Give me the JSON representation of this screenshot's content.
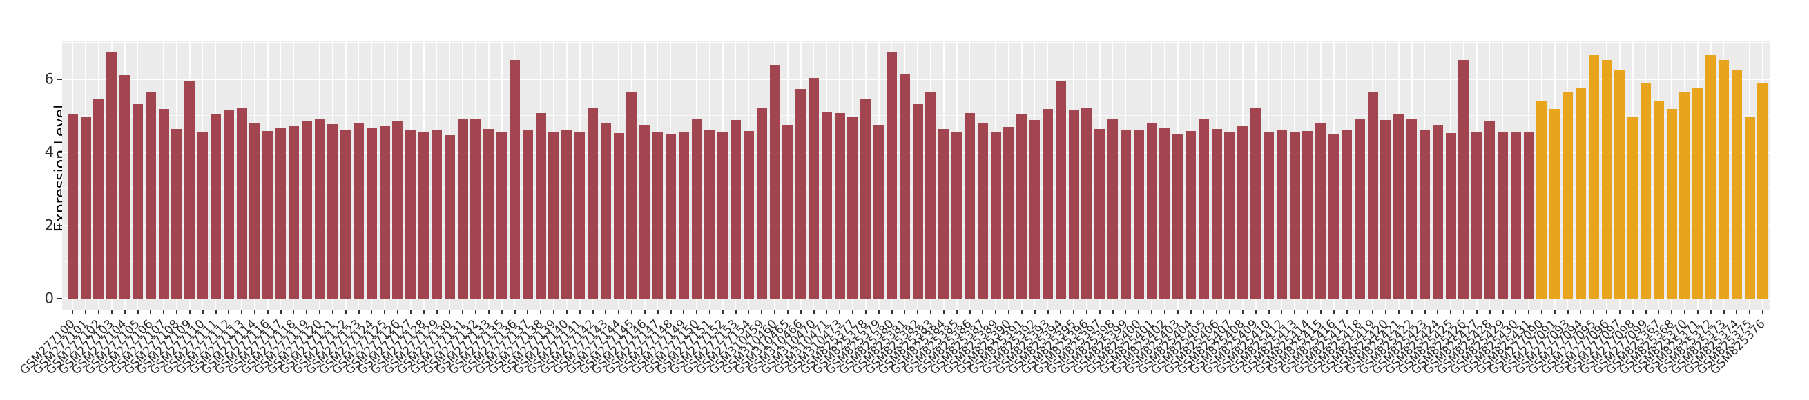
{
  "layout_colors": {
    "page_background": "#FFFFFF",
    "panel_background": "#EBEBEB",
    "grid_color": "#FFFFFF",
    "axis_text_color": "#2B2B2B",
    "tick_color": "#333333"
  },
  "chart_data": {
    "type": "bar",
    "title": "",
    "xlabel": "",
    "ylabel": "Expression Level",
    "ylim": [
      0,
      7.06
    ],
    "yticks": [
      0,
      2,
      4,
      6
    ],
    "grid": "on",
    "legend": "none",
    "groups": [
      {
        "name": "group-dark-red",
        "color": "#A34550"
      },
      {
        "name": "group-orange",
        "color": "#E8A41D"
      }
    ],
    "categories": [
      "GSM277100",
      "GSM277101",
      "GSM277102",
      "GSM277103",
      "GSM277104",
      "GSM277105",
      "GSM277106",
      "GSM277107",
      "GSM277108",
      "GSM277109",
      "GSM277110",
      "GSM277111",
      "GSM277112",
      "GSM277113",
      "GSM277114",
      "GSM277116",
      "GSM277117",
      "GSM277118",
      "GSM277119",
      "GSM277120",
      "GSM277121",
      "GSM277122",
      "GSM277123",
      "GSM277124",
      "GSM277125",
      "GSM277126",
      "GSM277127",
      "GSM277128",
      "GSM277129",
      "GSM277130",
      "GSM277131",
      "GSM277132",
      "GSM277133",
      "GSM277135",
      "GSM277136",
      "GSM277137",
      "GSM277138",
      "GSM277139",
      "GSM277140",
      "GSM277141",
      "GSM277142",
      "GSM277143",
      "GSM277144",
      "GSM277145",
      "GSM277146",
      "GSM277147",
      "GSM277148",
      "GSM277149",
      "GSM277150",
      "GSM277151",
      "GSM277152",
      "GSM277153",
      "GSM277154",
      "GSM310459",
      "GSM310460",
      "GSM310465",
      "GSM310466",
      "GSM310470",
      "GSM310471",
      "GSM310473",
      "GSM825377",
      "GSM825378",
      "GSM825379",
      "GSM825380",
      "GSM825381",
      "GSM825382",
      "GSM825383",
      "GSM825384",
      "GSM825385",
      "GSM825386",
      "GSM825387",
      "GSM825389",
      "GSM825390",
      "GSM825391",
      "GSM825392",
      "GSM825393",
      "GSM825394",
      "GSM825395",
      "GSM825396",
      "GSM825397",
      "GSM825398",
      "GSM825399",
      "GSM825400",
      "GSM825401",
      "GSM825402",
      "GSM825403",
      "GSM825404",
      "GSM825405",
      "GSM825406",
      "GSM825407",
      "GSM825408",
      "GSM825409",
      "GSM825410",
      "GSM825412",
      "GSM825413",
      "GSM825414",
      "GSM825415",
      "GSM825416",
      "GSM825417",
      "GSM825418",
      "GSM825419",
      "GSM825420",
      "GSM825421",
      "GSM825422",
      "GSM825423",
      "GSM825424",
      "GSM825425",
      "GSM825426",
      "GSM825427",
      "GSM825428",
      "GSM825429",
      "GSM825430",
      "GSM825431",
      "GSM277090",
      "GSM277091",
      "GSM277093",
      "GSM277094",
      "GSM277095",
      "GSM277096",
      "GSM277097",
      "GSM277098",
      "GSM277099",
      "GSM825367",
      "GSM825368",
      "GSM825370",
      "GSM825371",
      "GSM825372",
      "GSM825373",
      "GSM825374",
      "GSM825375",
      "GSM825376"
    ],
    "values": [
      5.04,
      4.98,
      5.45,
      6.75,
      6.11,
      5.32,
      5.64,
      5.19,
      4.64,
      5.94,
      4.55,
      5.06,
      5.15,
      5.2,
      4.81,
      4.58,
      4.68,
      4.71,
      4.87,
      4.91,
      4.77,
      4.6,
      4.82,
      4.68,
      4.72,
      4.84,
      4.63,
      4.57,
      4.63,
      4.48,
      4.92,
      4.92,
      4.65,
      4.55,
      6.52,
      4.62,
      5.07,
      4.57,
      4.6,
      4.55,
      5.23,
      4.79,
      4.53,
      5.64,
      4.76,
      4.54,
      4.49,
      4.57,
      4.9,
      4.62,
      4.54,
      4.89,
      4.59,
      5.2,
      6.39,
      4.76,
      5.74,
      6.03,
      5.12,
      5.08,
      4.98,
      5.47,
      4.76,
      6.75,
      6.13,
      5.32,
      5.65,
      4.65,
      4.55,
      5.07,
      4.79,
      4.57,
      4.7,
      5.03,
      4.88,
      5.18,
      5.94,
      5.15,
      5.2,
      4.65,
      4.91,
      4.62,
      4.62,
      4.81,
      4.67,
      4.49,
      4.58,
      4.92,
      4.64,
      4.55,
      4.71,
      5.22,
      4.55,
      4.62,
      4.54,
      4.59,
      4.79,
      4.5,
      4.6,
      4.92,
      5.64,
      4.88,
      5.06,
      4.9,
      4.6,
      4.75,
      4.53,
      6.52,
      4.55,
      4.84,
      4.57,
      4.57,
      4.55,
      5.4,
      5.18,
      5.64,
      5.78,
      6.66,
      6.52,
      6.24,
      4.99,
      5.91,
      5.42,
      5.18,
      5.64,
      5.77,
      6.66,
      6.52,
      6.25,
      4.99,
      5.91
    ],
    "group_index": [
      0,
      0,
      0,
      0,
      0,
      0,
      0,
      0,
      0,
      0,
      0,
      0,
      0,
      0,
      0,
      0,
      0,
      0,
      0,
      0,
      0,
      0,
      0,
      0,
      0,
      0,
      0,
      0,
      0,
      0,
      0,
      0,
      0,
      0,
      0,
      0,
      0,
      0,
      0,
      0,
      0,
      0,
      0,
      0,
      0,
      0,
      0,
      0,
      0,
      0,
      0,
      0,
      0,
      0,
      0,
      0,
      0,
      0,
      0,
      0,
      0,
      0,
      0,
      0,
      0,
      0,
      0,
      0,
      0,
      0,
      0,
      0,
      0,
      0,
      0,
      0,
      0,
      0,
      0,
      0,
      0,
      0,
      0,
      0,
      0,
      0,
      0,
      0,
      0,
      0,
      0,
      0,
      0,
      0,
      0,
      0,
      0,
      0,
      0,
      0,
      0,
      0,
      0,
      0,
      0,
      0,
      0,
      0,
      0,
      0,
      0,
      0,
      0,
      1,
      1,
      1,
      1,
      1,
      1,
      1,
      1,
      1,
      1,
      1,
      1,
      1,
      1,
      1,
      1,
      1,
      1
    ]
  }
}
